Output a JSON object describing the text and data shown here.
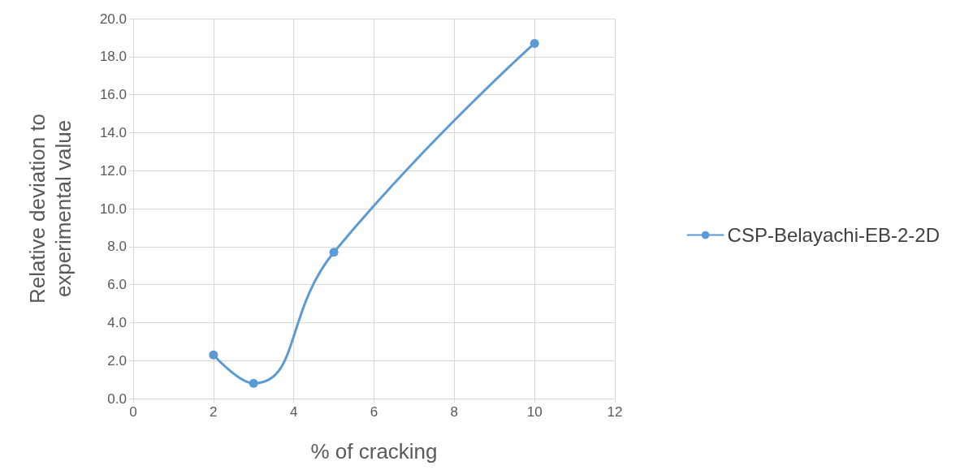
{
  "chart_data": {
    "type": "line",
    "xlabel": "% of cracking",
    "ylabel": "Relative deviation to\nexperimental value",
    "x": [
      2,
      3,
      5,
      10
    ],
    "series": [
      {
        "name": "CSP-Belayachi-EB-2-2D",
        "color": "#5b9bd5",
        "values": [
          2.3,
          0.8,
          7.7,
          18.7
        ]
      }
    ],
    "xlim": [
      0,
      12
    ],
    "xticks": [
      0,
      2,
      4,
      6,
      8,
      10,
      12
    ],
    "ylim": [
      0,
      20
    ],
    "yticks": [
      {
        "value": 0,
        "label": "0.0"
      },
      {
        "value": 2,
        "label": "2.0"
      },
      {
        "value": 4,
        "label": "4.0"
      },
      {
        "value": 6,
        "label": "6.0"
      },
      {
        "value": 8,
        "label": "8.0"
      },
      {
        "value": 10,
        "label": "10.0"
      },
      {
        "value": 12,
        "label": "12.0"
      },
      {
        "value": 14,
        "label": "14.0"
      },
      {
        "value": 16,
        "label": "16.0"
      },
      {
        "value": 18,
        "label": "18.0"
      },
      {
        "value": 20,
        "label": "20.0"
      }
    ],
    "grid": true,
    "legend": "right",
    "marker": "circle",
    "line_style": "solid"
  }
}
